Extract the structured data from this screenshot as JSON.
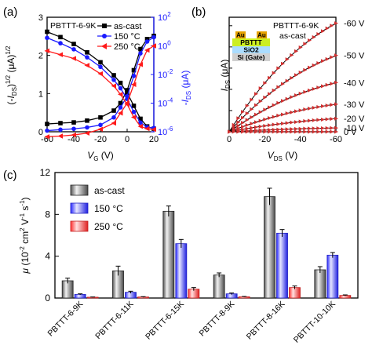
{
  "colors": {
    "black": "#000000",
    "blue": "#1a1aff",
    "red": "#ff1a1a",
    "axis_blue": "#1a1aff"
  },
  "chart_data": [
    {
      "panel_label": "(a)",
      "type": "line",
      "annotation": "PBTTT-6-9K",
      "xlabel": "V_G (V)",
      "ylabel_left": "(-I_DS)^1/2 (μA)^1/2",
      "ylabel_right": "-I_DS (μA)",
      "xlim": [
        -60,
        20
      ],
      "ylim_left": [
        0,
        3
      ],
      "ylim_right_log": [
        1e-06,
        100
      ],
      "x_ticks": [
        "-60",
        "-40",
        "-20",
        "0",
        "20"
      ],
      "y_ticks_left": [
        "0",
        "1",
        "2",
        "3"
      ],
      "y_ticks_right": [
        "10-6",
        "10-4",
        "10-2",
        "100",
        "102"
      ],
      "legend_position": "top-right",
      "x": [
        -60,
        -50,
        -40,
        -30,
        -20,
        -10,
        -5,
        0,
        5,
        10,
        15,
        20
      ],
      "series": [
        {
          "name": "as-cast",
          "color": "#000000",
          "marker": "square",
          "sqrt_values": [
            2.62,
            2.48,
            2.3,
            2.08,
            1.82,
            1.48,
            1.28,
            1.02,
            0.68,
            0.34,
            0.14,
            0.08
          ],
          "log_values": [
            3.5e-06,
            4e-06,
            4.5e-06,
            6e-06,
            1e-05,
            3e-05,
            0.0001,
            0.0008,
            0.02,
            0.6,
            3,
            5
          ]
        },
        {
          "name": "150 °C",
          "color": "#1a1aff",
          "marker": "circle",
          "sqrt_values": [
            2.46,
            2.32,
            2.16,
            1.95,
            1.7,
            1.36,
            1.14,
            0.86,
            0.52,
            0.24,
            0.12,
            0.1
          ],
          "log_values": [
            1.2e-06,
            1.4e-06,
            1.6e-06,
            2e-06,
            3e-06,
            1e-05,
            5e-05,
            0.0003,
            0.008,
            0.3,
            2,
            4
          ]
        },
        {
          "name": "250 °C",
          "color": "#ff1a1a",
          "marker": "triangle-left",
          "sqrt_values": [
            2.12,
            2.02,
            1.92,
            1.74,
            1.52,
            1.2,
            0.98,
            0.72,
            0.38,
            0.14,
            0.08,
            0.06
          ],
          "log_values": [
            4.5e-07,
            5e-07,
            6e-07,
            8e-07,
            1.5e-06,
            4e-06,
            2e-05,
            0.0001,
            0.002,
            0.05,
            0.5,
            1
          ]
        }
      ]
    },
    {
      "panel_label": "(b)",
      "type": "line",
      "annotation": "PBTTT-6-9K",
      "annotation2": "as-cast",
      "inset_layers": [
        "Au",
        "Au",
        "PBTTT",
        "SiO2",
        "Si (Gate)"
      ],
      "xlabel": "V_DS (V)",
      "ylabel": "I_DS (μA)",
      "xlim": [
        0,
        -60
      ],
      "ylim": [
        0,
        2.7
      ],
      "x_ticks": [
        "0",
        "-20",
        "-40",
        "-60"
      ],
      "series": [
        {
          "name": "-60 V",
          "final": 2.56
        },
        {
          "name": "-50 V",
          "final": 1.8
        },
        {
          "name": "-40 V",
          "final": 1.16
        },
        {
          "name": "-30 V",
          "final": 0.65
        },
        {
          "name": "-20 V",
          "final": 0.31
        },
        {
          "name": "-10 V",
          "final": 0.09
        },
        {
          "name": "0 V",
          "final": 0.0
        }
      ]
    },
    {
      "panel_label": "(c)",
      "type": "bar",
      "ylabel": "μ (10-2 cm2 V-1 s-1)",
      "ylim": [
        0,
        12
      ],
      "y_ticks": [
        "0",
        "4",
        "8",
        "12"
      ],
      "legend_position": "top-left",
      "categories": [
        "PBTTT-6-9K",
        "PBTTT-6-11K",
        "PBTTT-6-15K",
        "PBTTT-8-9K",
        "PBTTT-8-16K",
        "PBTTT-10-10K"
      ],
      "series": [
        {
          "name": "as-cast",
          "color": "#9a9a9a",
          "values": [
            1.65,
            2.6,
            8.3,
            2.2,
            9.7,
            2.7
          ],
          "errors": [
            0.25,
            0.45,
            0.5,
            0.2,
            0.8,
            0.3
          ]
        },
        {
          "name": "150 °C",
          "color": "#3c3cff",
          "values": [
            0.35,
            0.55,
            5.2,
            0.4,
            6.2,
            4.1
          ],
          "errors": [
            0.05,
            0.1,
            0.4,
            0.08,
            0.35,
            0.25
          ]
        },
        {
          "name": "250 °C",
          "color": "#ff4040",
          "values": [
            0.08,
            0.1,
            0.85,
            0.12,
            1.0,
            0.25
          ],
          "errors": [
            0.02,
            0.03,
            0.15,
            0.03,
            0.15,
            0.05
          ]
        }
      ]
    }
  ]
}
